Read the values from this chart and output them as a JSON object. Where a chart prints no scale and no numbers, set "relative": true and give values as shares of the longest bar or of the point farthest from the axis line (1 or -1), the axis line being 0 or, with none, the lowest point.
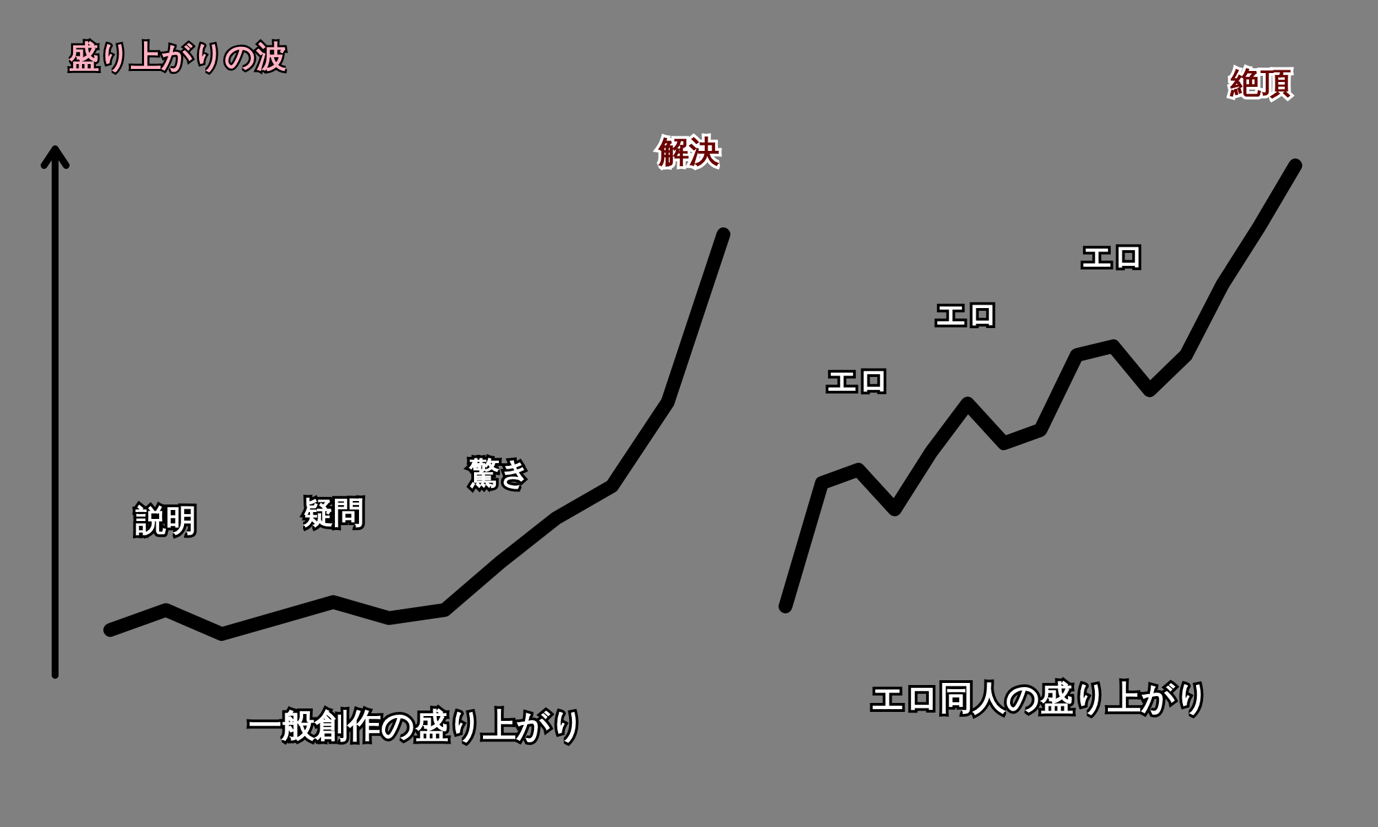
{
  "chart_data": [
    {
      "type": "line",
      "title": "盛り上がりの波",
      "xlabel": "一般創作の盛り上がり",
      "relative": true,
      "line_style": "solid",
      "categories": [
        null,
        null,
        null,
        null,
        null,
        null,
        null,
        null,
        null,
        null,
        null,
        null
      ],
      "series": [
        {
          "color": "#000000",
          "values": [
            0.01,
            0.06,
            0,
            0.04,
            0.08,
            0.04,
            0.06,
            0.18,
            0.29,
            0.37,
            0.58,
            1
          ]
        }
      ],
      "annotations": [
        "説明",
        "疑問",
        "驚き",
        "解決"
      ]
    },
    {
      "type": "line",
      "xlabel": "エロ同人の盛り上がり",
      "relative": true,
      "line_style": "solid",
      "categories": [
        null,
        null,
        null,
        null,
        null,
        null,
        null,
        null,
        null,
        null,
        null,
        null,
        null,
        null,
        null
      ],
      "series": [
        {
          "color": "#000000",
          "values": [
            0,
            0.28,
            0.31,
            0.22,
            0.35,
            0.46,
            0.37,
            0.4,
            0.57,
            0.59,
            0.49,
            0.57,
            0.73,
            0.86,
            1
          ]
        }
      ],
      "annotations": [
        "エロ",
        "エロ",
        "エロ",
        "絶頂"
      ]
    }
  ]
}
